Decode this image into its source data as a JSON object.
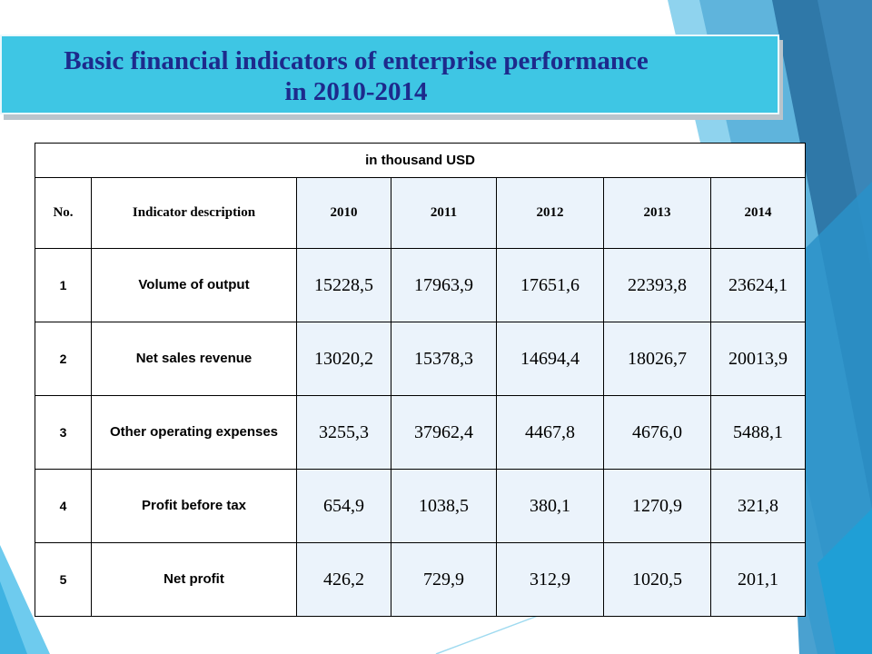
{
  "slide": {
    "title_line1": "Basic financial indicators of enterprise performance",
    "title_line2": "in 2010-2014",
    "accent_color": "#3ec6e4",
    "title_color": "#1d2a8c"
  },
  "table": {
    "unit_note": "in thousand USD",
    "headers": [
      "No.",
      "Indicator description",
      "2010",
      "2011",
      "2012",
      "2013",
      "2014"
    ],
    "rows": [
      {
        "no": "1",
        "desc": "Volume of output",
        "values": [
          "15228,5",
          "17963,9",
          "17651,6",
          "22393,8",
          "23624,1"
        ]
      },
      {
        "no": "2",
        "desc": "Net sales revenue",
        "values": [
          "13020,2",
          "15378,3",
          "14694,4",
          "18026,7",
          "20013,9"
        ]
      },
      {
        "no": "3",
        "desc": "Other operating expenses",
        "values": [
          "3255,3",
          "37962,4",
          "4467,8",
          "4676,0",
          "5488,1"
        ]
      },
      {
        "no": "4",
        "desc": "Profit before tax",
        "values": [
          "654,9",
          "1038,5",
          "380,1",
          "1270,9",
          "321,8"
        ]
      },
      {
        "no": "5",
        "desc": "Net profit",
        "values": [
          "426,2",
          "729,9",
          "312,9",
          "1020,5",
          "201,1"
        ]
      }
    ]
  }
}
